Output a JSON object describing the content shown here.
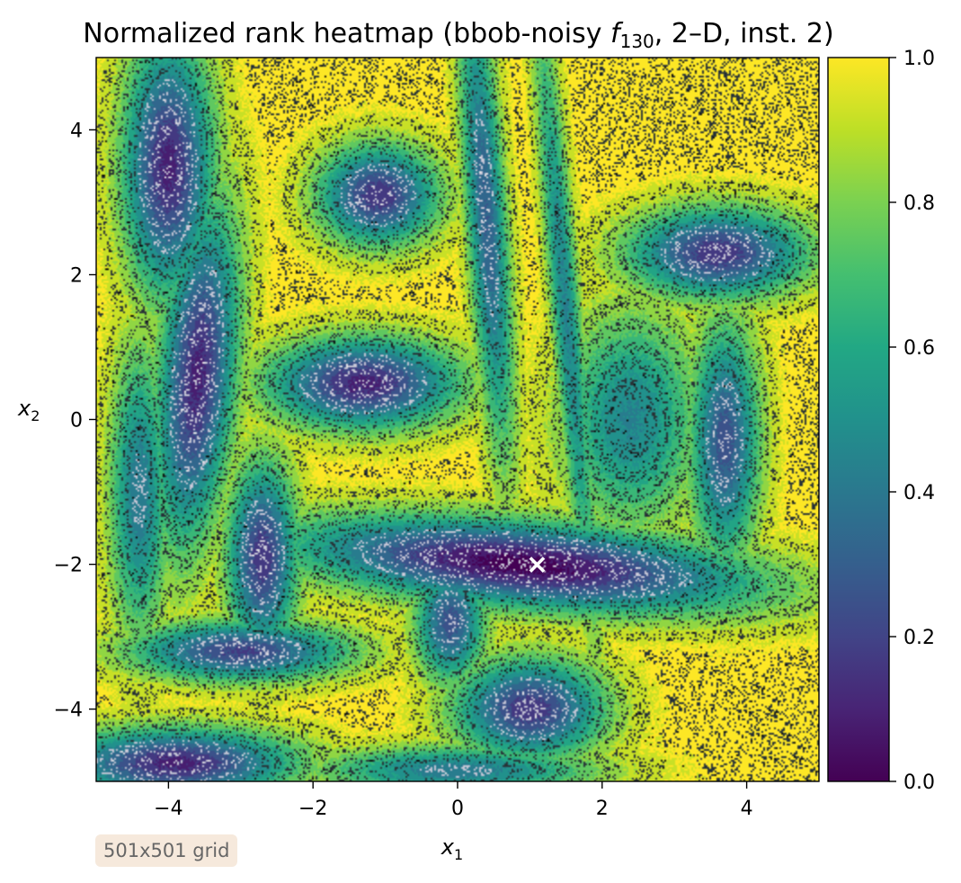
{
  "chart_data": {
    "type": "heatmap",
    "title": {
      "prefix": "Normalized rank heatmap (bbob-noisy ",
      "f_symbol": "f",
      "f_subscript": "130",
      "suffix": ", 2–D, inst. 2)"
    },
    "xlabel": {
      "symbol": "x",
      "subscript": "1"
    },
    "ylabel": {
      "symbol": "x",
      "subscript": "2"
    },
    "xlim": [
      -5,
      5
    ],
    "ylim": [
      -5,
      5
    ],
    "x_ticks": [
      -4,
      -2,
      0,
      2,
      4
    ],
    "x_tick_labels": [
      "−4",
      "−2",
      "0",
      "2",
      "4"
    ],
    "y_ticks": [
      -4,
      -2,
      0,
      2,
      4
    ],
    "y_tick_labels": [
      "−4",
      "−2",
      "0",
      "2",
      "4"
    ],
    "colormap": "viridis",
    "colorbar": {
      "range": [
        0,
        1
      ],
      "ticks": [
        0.0,
        0.2,
        0.4,
        0.6,
        0.8,
        1.0
      ],
      "tick_labels": [
        "0.0",
        "0.2",
        "0.4",
        "0.6",
        "0.8",
        "1.0"
      ]
    },
    "basins": [
      {
        "cx": 0.9,
        "cy": -2.0,
        "rx": 2.3,
        "ry": 0.42,
        "angle": -5,
        "depth": 1.0
      },
      {
        "cx": -4.0,
        "cy": 3.5,
        "rx": 0.45,
        "ry": 1.3,
        "angle": 0,
        "depth": 0.9
      },
      {
        "cx": -3.6,
        "cy": 0.6,
        "rx": 0.38,
        "ry": 1.7,
        "angle": -5,
        "depth": 0.9
      },
      {
        "cx": -1.3,
        "cy": 0.5,
        "rx": 0.95,
        "ry": 0.45,
        "angle": 0,
        "depth": 0.9
      },
      {
        "cx": -1.1,
        "cy": 3.1,
        "rx": 0.6,
        "ry": 0.5,
        "angle": 0,
        "depth": 0.85
      },
      {
        "cx": 3.6,
        "cy": 2.3,
        "rx": 0.9,
        "ry": 0.45,
        "angle": 0,
        "depth": 0.85
      },
      {
        "cx": -2.7,
        "cy": -1.9,
        "rx": 0.35,
        "ry": 0.95,
        "angle": 0,
        "depth": 0.85
      },
      {
        "cx": -3.0,
        "cy": -3.2,
        "rx": 1.1,
        "ry": 0.3,
        "angle": 0,
        "depth": 0.8
      },
      {
        "cx": 1.0,
        "cy": -4.0,
        "rx": 0.75,
        "ry": 0.5,
        "angle": 0,
        "depth": 0.85
      },
      {
        "cx": -3.9,
        "cy": -4.75,
        "rx": 1.2,
        "ry": 0.35,
        "angle": 0,
        "depth": 0.9
      },
      {
        "cx": -0.1,
        "cy": -2.8,
        "rx": 0.35,
        "ry": 0.6,
        "angle": 0,
        "depth": 0.75
      },
      {
        "cx": 3.7,
        "cy": -0.3,
        "rx": 0.35,
        "ry": 1.2,
        "angle": 0,
        "depth": 0.75
      },
      {
        "cx": 2.4,
        "cy": 0.0,
        "rx": 0.7,
        "ry": 1.1,
        "angle": 0,
        "depth": 0.55
      },
      {
        "cx": 0.4,
        "cy": 2.8,
        "rx": 0.2,
        "ry": 2.4,
        "angle": 4,
        "depth": 0.7
      },
      {
        "cx": 1.5,
        "cy": 1.5,
        "rx": 0.15,
        "ry": 3.2,
        "angle": 5,
        "depth": 0.55
      },
      {
        "cx": -4.4,
        "cy": -1.0,
        "rx": 0.3,
        "ry": 1.5,
        "angle": 0,
        "depth": 0.6
      },
      {
        "cx": 0.0,
        "cy": -4.85,
        "rx": 1.4,
        "ry": 0.25,
        "angle": 0,
        "depth": 0.6
      }
    ],
    "optimum_marker": {
      "x": 1.1,
      "y": -2.0,
      "symbol": "×"
    },
    "annotation": "501x501 grid"
  }
}
